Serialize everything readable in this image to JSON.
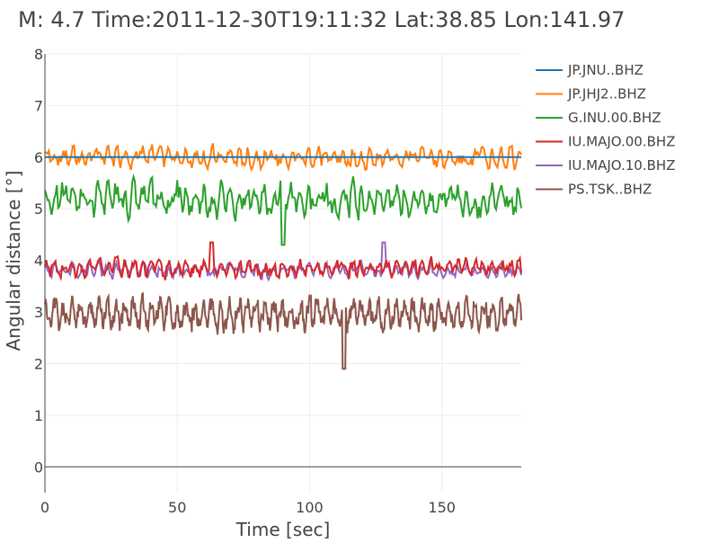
{
  "chart_data": {
    "type": "line",
    "title": "M: 4.7 Time:2011-12-30T19:11:32 Lat:38.85 Lon:141.97",
    "xlabel": "Time [sec]",
    "ylabel": "Angular distance [°]",
    "xlim": [
      0,
      180
    ],
    "ylim": [
      -0.5,
      8
    ],
    "xticks": [
      0,
      50,
      100,
      150
    ],
    "yticks": [
      0,
      1,
      2,
      3,
      4,
      5,
      6,
      7,
      8
    ],
    "grid": true,
    "legend_position": "top-right",
    "series": [
      {
        "name": "JP.JNU..BHZ",
        "color": "#1f77b4",
        "x": [
          0,
          180
        ],
        "y": [
          6.0,
          6.0
        ]
      },
      {
        "name": "JP.JHJ2..BHZ",
        "color": "#ff7f0e",
        "base": 6.0,
        "amp": 0.18,
        "points": 360
      },
      {
        "name": "G.INU.00.BHZ",
        "color": "#2ca02c",
        "base": 5.2,
        "amp": 0.3,
        "points": 360,
        "min_at": [
          90,
          4.3
        ]
      },
      {
        "name": "IU.MAJO.00.BHZ",
        "color": "#d62728",
        "base": 3.85,
        "amp": 0.15,
        "points": 360,
        "max_at": [
          63,
          4.35
        ]
      },
      {
        "name": "IU.MAJO.10.BHZ",
        "color": "#9467bd",
        "base": 3.8,
        "amp": 0.12,
        "points": 360,
        "max_at": [
          128,
          4.35
        ]
      },
      {
        "name": "PS.TSK..BHZ",
        "color": "#8c564b",
        "base": 2.95,
        "amp": 0.25,
        "points": 720,
        "min_at": [
          113,
          1.9
        ]
      }
    ]
  }
}
